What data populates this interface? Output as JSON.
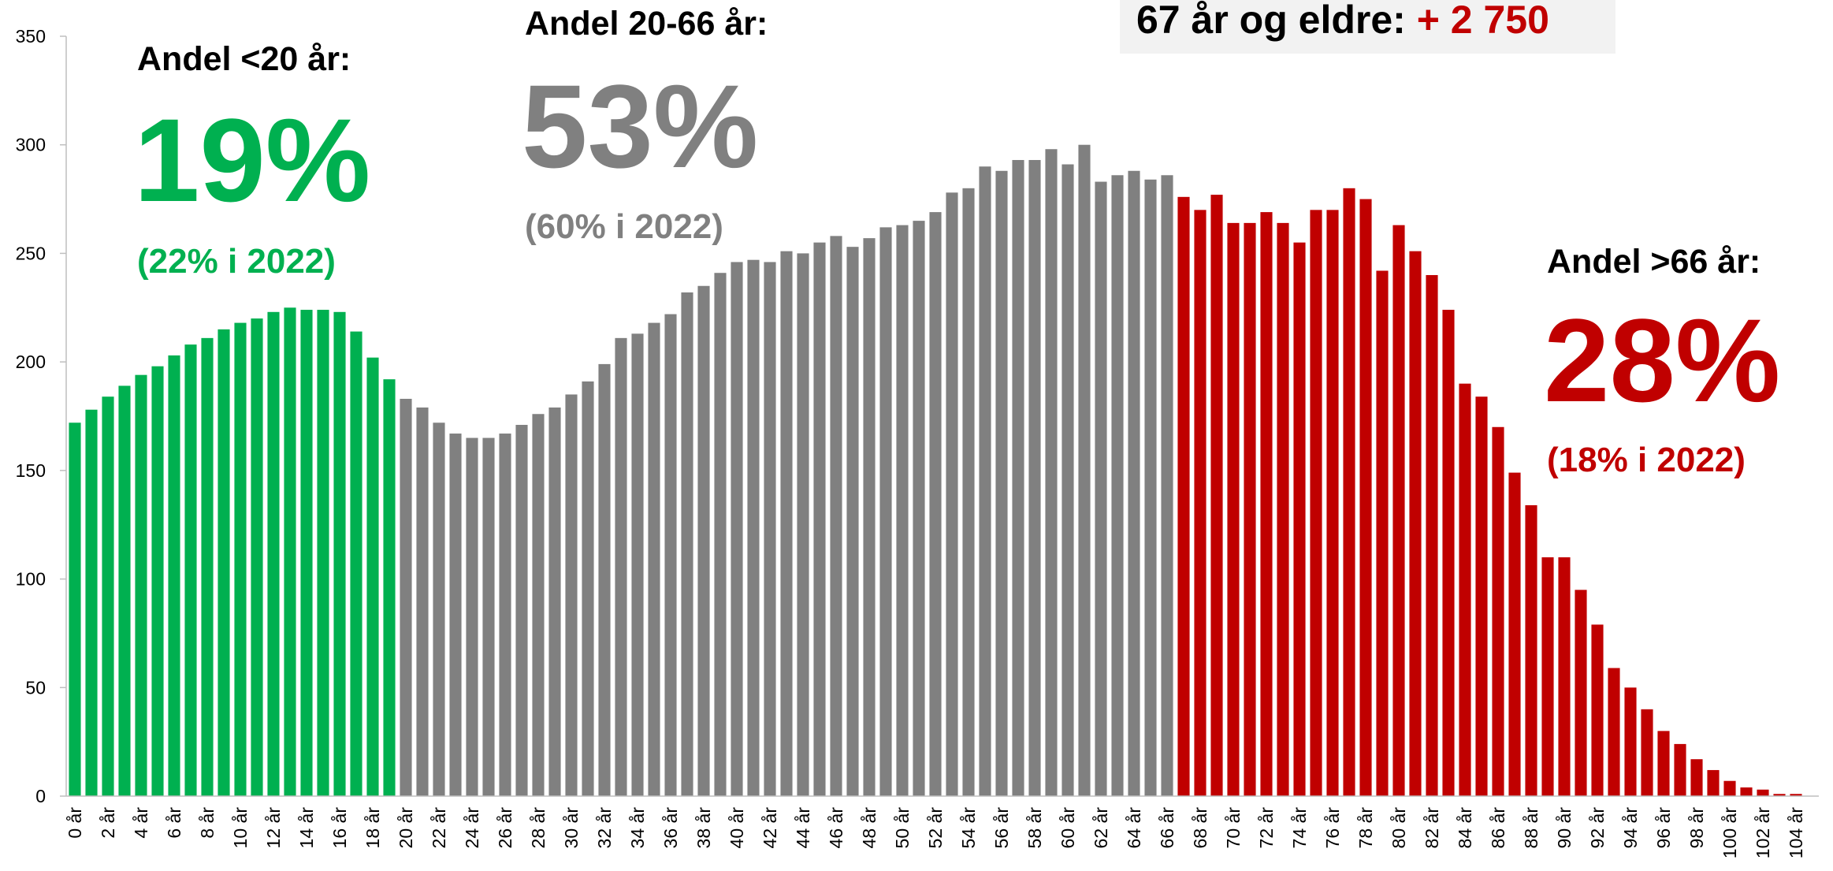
{
  "chart_data": {
    "type": "bar",
    "categories": [
      "0 år",
      null,
      "2 år",
      null,
      "4 år",
      null,
      "6 år",
      null,
      "8 år",
      null,
      "10 år",
      null,
      "12 år",
      null,
      "14 år",
      null,
      "16 år",
      null,
      "18 år",
      null,
      "20 år",
      null,
      "22 år",
      null,
      "24 år",
      null,
      "26 år",
      null,
      "28 år",
      null,
      "30 år",
      null,
      "32 år",
      null,
      "34 år",
      null,
      "36 år",
      null,
      "38 år",
      null,
      "40 år",
      null,
      "42 år",
      null,
      "44 år",
      null,
      "46 år",
      null,
      "48 år",
      null,
      "50 år",
      null,
      "52 år",
      null,
      "54 år",
      null,
      "56 år",
      null,
      "58 år",
      null,
      "60 år",
      null,
      "62 år",
      null,
      "64 år",
      null,
      "66 år",
      null,
      "68 år",
      null,
      "70 år",
      null,
      "72 år",
      null,
      "74 år",
      null,
      "76 år",
      null,
      "78 år",
      null,
      "80 år",
      null,
      "82 år",
      null,
      "84 år",
      null,
      "86 år",
      null,
      "88 år",
      null,
      "90 år",
      null,
      "92 år",
      null,
      "94 år",
      null,
      "96 år",
      null,
      "98 år",
      null,
      "100 år",
      null,
      "102 år",
      null,
      "104 år"
    ],
    "values": [
      172,
      178,
      184,
      189,
      194,
      198,
      203,
      208,
      211,
      215,
      218,
      220,
      223,
      225,
      224,
      224,
      223,
      214,
      202,
      192,
      183,
      179,
      172,
      167,
      165,
      165,
      167,
      171,
      176,
      179,
      185,
      191,
      199,
      211,
      213,
      218,
      222,
      232,
      235,
      241,
      246,
      247,
      246,
      251,
      250,
      255,
      258,
      253,
      257,
      262,
      263,
      265,
      269,
      278,
      280,
      290,
      288,
      293,
      293,
      298,
      291,
      300,
      283,
      286,
      288,
      284,
      286,
      276,
      270,
      277,
      264,
      264,
      269,
      264,
      255,
      270,
      270,
      280,
      275,
      242,
      263,
      251,
      240,
      224,
      190,
      184,
      170,
      149,
      134,
      110,
      110,
      95,
      79,
      59,
      50,
      40,
      30,
      24,
      17,
      12,
      7,
      4,
      3,
      1,
      1
    ],
    "colors": [
      "#00b050",
      "#00b050",
      "#00b050",
      "#00b050",
      "#00b050",
      "#00b050",
      "#00b050",
      "#00b050",
      "#00b050",
      "#00b050",
      "#00b050",
      "#00b050",
      "#00b050",
      "#00b050",
      "#00b050",
      "#00b050",
      "#00b050",
      "#00b050",
      "#00b050",
      "#00b050",
      "#808080",
      "#808080",
      "#808080",
      "#808080",
      "#808080",
      "#808080",
      "#808080",
      "#808080",
      "#808080",
      "#808080",
      "#808080",
      "#808080",
      "#808080",
      "#808080",
      "#808080",
      "#808080",
      "#808080",
      "#808080",
      "#808080",
      "#808080",
      "#808080",
      "#808080",
      "#808080",
      "#808080",
      "#808080",
      "#808080",
      "#808080",
      "#808080",
      "#808080",
      "#808080",
      "#808080",
      "#808080",
      "#808080",
      "#808080",
      "#808080",
      "#808080",
      "#808080",
      "#808080",
      "#808080",
      "#808080",
      "#808080",
      "#808080",
      "#808080",
      "#808080",
      "#808080",
      "#808080",
      "#808080",
      "#c00000",
      "#c00000",
      "#c00000",
      "#c00000",
      "#c00000",
      "#c00000",
      "#c00000",
      "#c00000",
      "#c00000",
      "#c00000",
      "#c00000",
      "#c00000",
      "#c00000",
      "#c00000",
      "#c00000",
      "#c00000",
      "#c00000",
      "#c00000",
      "#c00000",
      "#c00000",
      "#c00000",
      "#c00000",
      "#c00000",
      "#c00000",
      "#c00000",
      "#c00000",
      "#c00000",
      "#c00000",
      "#c00000",
      "#c00000",
      "#c00000",
      "#c00000",
      "#c00000",
      "#c00000",
      "#c00000",
      "#c00000",
      "#c00000",
      "#c00000"
    ],
    "ylim": [
      0,
      350
    ],
    "yticks": [
      0,
      50,
      100,
      150,
      200,
      250,
      300,
      350
    ],
    "annotations": {
      "young": {
        "label": "Andel <20 år:",
        "share": "19%",
        "previous": "(22% i 2022)"
      },
      "working": {
        "label": "Andel 20-66 år:",
        "share": "53%",
        "previous": "(60% i 2022)"
      },
      "old": {
        "label": "Andel >66 år:",
        "share": "28%",
        "previous": "(18% i 2022)"
      },
      "box": {
        "label": "67 år og eldre: ",
        "value": "+ 2 750"
      }
    }
  }
}
